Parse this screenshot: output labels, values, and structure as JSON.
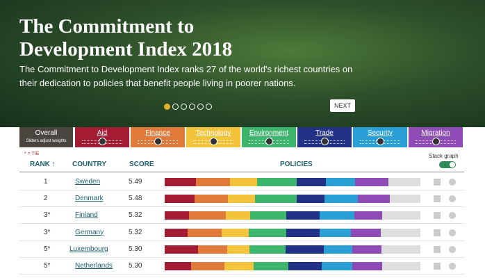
{
  "header": {
    "title": "The Commitment to Development Index 2018",
    "subtitle": "The Commitment to Development Index ranks 27 of the world's richest countries on their dedication to policies that benefit people living in poorer nations.",
    "next_button": "NEXT"
  },
  "tabs": [
    {
      "label": "Overall",
      "note": "Sliders adjust weights"
    },
    {
      "label": "Aid"
    },
    {
      "label": "Finance"
    },
    {
      "label": "Technology"
    },
    {
      "label": "Environment"
    },
    {
      "label": "Trade"
    },
    {
      "label": "Security"
    },
    {
      "label": "Migration"
    }
  ],
  "table": {
    "tie_note": "* = TIE",
    "toggle_label": "Stack graph",
    "columns": [
      "RANK ↑",
      "COUNTRY",
      "SCORE",
      "POLICIES"
    ],
    "rows": [
      {
        "rank": "1",
        "country": "Sweden",
        "score": "5.49",
        "policies": [
          5.6,
          6.2,
          4.8,
          7.2,
          5.2,
          5.2,
          6.0
        ]
      },
      {
        "rank": "2",
        "country": "Denmark",
        "score": "5.48",
        "policies": [
          5.4,
          6.0,
          4.9,
          7.4,
          5.0,
          6.0,
          5.8
        ]
      },
      {
        "rank": "3*",
        "country": "Finland",
        "score": "5.32",
        "policies": [
          4.4,
          6.6,
          4.4,
          6.5,
          6.0,
          6.2,
          5.0
        ]
      },
      {
        "rank": "3*",
        "country": "Germany",
        "score": "5.32",
        "policies": [
          4.1,
          6.2,
          4.8,
          6.8,
          6.0,
          5.6,
          5.4
        ]
      },
      {
        "rank": "5*",
        "country": "Luxembourg",
        "score": "5.30",
        "policies": [
          6.0,
          5.2,
          4.1,
          6.5,
          6.8,
          5.2,
          5.2
        ]
      },
      {
        "rank": "5*",
        "country": "Netherlands",
        "score": "5.30",
        "policies": [
          4.8,
          6.0,
          5.2,
          6.2,
          6.0,
          5.5,
          5.4
        ]
      }
    ]
  }
}
